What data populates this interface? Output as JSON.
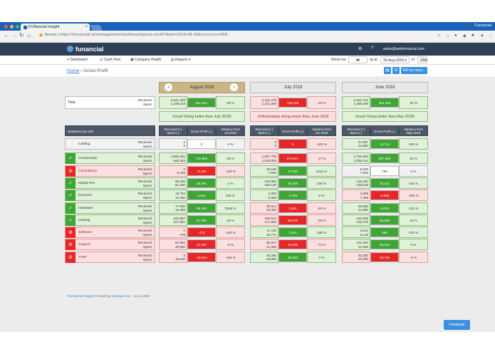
{
  "browser": {
    "tab_title": "FUNancial Insight",
    "tab_close": "×",
    "profile": "Funancial",
    "secure_label": "Secure",
    "url_text": "| https://funancial.ai/management/dashboard/gross-profit?date=2018-08-30&currency=ZAR",
    "icons": [
      "back-icon",
      "forward-icon",
      "reload-icon",
      "home-icon",
      "zoom-icon",
      "star-icon",
      "menu-icon"
    ]
  },
  "app": {
    "logo": "funancial",
    "email": "andre@andremuscat.com",
    "nav": [
      "Dashboard",
      "Cash Flow",
      "Company Health",
      "Reports"
    ],
    "show_me_label": "Show me",
    "as_at_label": "as at",
    "date_value": "30-Aug-2018",
    "in_label": "in",
    "currency": "ZAR",
    "tell_me_more": "Tell me more..."
  },
  "breadcrumb": {
    "home": "Home",
    "separator": " › ",
    "current": "Gross Profit"
  },
  "months": {
    "aug": {
      "label": "August 2018",
      "prev": "‹",
      "next": "›"
    },
    "jul": {
      "label": "July 2018"
    },
    "jun": {
      "label": "June 2018"
    }
  },
  "total": {
    "label": "Total",
    "received_label": "Received:",
    "spent_label": "Spent:",
    "aug": {
      "received": "2,041,339",
      "spent": "1,109,418",
      "profit": "931,921",
      "variance": "28 %",
      "profit_tone": "g",
      "tone": "g"
    },
    "jul": {
      "received": "2,151,476",
      "spent": "1,421,309",
      "profit": "730,166",
      "variance": "-20 %",
      "profit_tone": "r",
      "tone": "r"
    },
    "jun": {
      "received": "2,404,764",
      "spent": "1,486,506",
      "profit": "918,258",
      "variance": "34 %",
      "profit_tone": "g",
      "tone": "g"
    }
  },
  "messages": {
    "aug": {
      "text": "Great! Doing better than July 2018!",
      "tone": "g"
    },
    "jul": {
      "text": "Unfortunately doing worse than June 2018",
      "tone": "r"
    },
    "jun": {
      "text": "Great! Doing better than May 2018!",
      "tone": "g"
    }
  },
  "headers": {
    "solutions": "Solutions you sell",
    "received_spent": [
      "Received (+)",
      "Spent (-)"
    ],
    "gross_profit": "Gross Profit (=)",
    "variance_aug": [
      "Variance from",
      "Jul 2018"
    ],
    "variance_jul": [
      "Variance from",
      "Jun 2018"
    ],
    "variance_jun": [
      "Variance from",
      "May 2018"
    ]
  },
  "rows": [
    {
      "name": "Cabling",
      "status": "none",
      "aug": {
        "r": "0",
        "s": "0",
        "p": "0",
        "v": "0 %",
        "pt": "w",
        "t": "n"
      },
      "jul": {
        "r": "0",
        "s": "0",
        "p": "0",
        "v": "-100 %",
        "pt": "r",
        "t": "r"
      },
      "jun": {
        "r": "57,597",
        "s": "42,883",
        "p": "14,714",
        "v": "100 %",
        "pt": "g",
        "t": "g"
      }
    },
    {
      "name": "Connectivity",
      "status": "g",
      "aug": {
        "r": "1,590,251",
        "s": "848,363",
        "p": "741,889",
        "v": "30 %",
        "pt": "g",
        "t": "g"
      },
      "jul": {
        "r": "1,587,700",
        "s": "1,015,084",
        "p": "572,617",
        "v": "-17 %",
        "pt": "r",
        "t": "r"
      },
      "jun": {
        "r": "1,752,994",
        "s": "1,065,314",
        "p": "687,680",
        "v": "22 %",
        "pt": "g",
        "t": "g"
      }
    },
    {
      "name": "Consultancy",
      "status": "r",
      "aug": {
        "r": "0",
        "s": "8,156",
        "p": "-8,156",
        "v": "-146 %",
        "pt": "r",
        "t": "r"
      },
      "jul": {
        "r": "25,100",
        "s": "7,500",
        "p": "17,600",
        "v": "2414 %",
        "pt": "g",
        "t": "g"
      },
      "jun": {
        "r": "8,200",
        "s": "7,500",
        "p": "700",
        "v": "0 %",
        "pt": "w",
        "t": "n"
      }
    },
    {
      "name": "Digital Pen",
      "status": "g",
      "aug": {
        "r": "96,320",
        "s": "61,260",
        "p": "35,060",
        "v": "2 %",
        "pt": "g",
        "t": "g"
      },
      "jul": {
        "r": "194,550",
        "s": "160,130",
        "p": "34,359",
        "v": "230 %",
        "pt": "g",
        "t": "g"
      },
      "jun": {
        "r": "136,440",
        "s": "126,019",
        "p": "10,421",
        "v": "118 %",
        "pt": "g",
        "t": "g"
      }
    },
    {
      "name": "Domains",
      "status": "g",
      "aug": {
        "r": "18,784",
        "s": "13,330",
        "p": "5,454",
        "v": "245 %",
        "pt": "g",
        "t": "g"
      },
      "jul": {
        "r": "1,600",
        "s": "5,358",
        "p": "-3,758",
        "v": "5 %",
        "pt": "g",
        "t": "g"
      },
      "jun": {
        "r": "3,369",
        "s": "7,336",
        "p": "-3,966",
        "v": "-290 %",
        "pt": "r",
        "t": "r"
      }
    },
    {
      "name": "Hardware",
      "status": "g",
      "aug": {
        "r": "77,636",
        "s": "12,469",
        "p": "65,166",
        "v": "2548 %",
        "pt": "g",
        "t": "g"
      },
      "jul": {
        "r": "30,914",
        "s": "28,453",
        "p": "2,461",
        "v": "-82 %",
        "pt": "r",
        "t": "r"
      },
      "jun": {
        "r": "58,585",
        "s": "44,585",
        "p": "14,001",
        "v": "131 %",
        "pt": "g",
        "t": "g"
      }
    },
    {
      "name": "Hosting",
      "status": "g",
      "aug": {
        "r": "194,997",
        "s": "107,691",
        "p": "87,306",
        "v": "43 %",
        "pt": "g",
        "t": "g"
      },
      "jul": {
        "r": "188,544",
        "s": "127,668",
        "p": "60,976",
        "v": "-29 %",
        "pt": "r",
        "t": "r"
      },
      "jun": {
        "r": "210,936",
        "s": "125,476",
        "p": "85,460",
        "v": "24 %",
        "pt": "g",
        "t": "g"
      }
    },
    {
      "name": "Software",
      "status": "r",
      "aug": {
        "r": "0",
        "s": "479",
        "p": "-479",
        "v": "-129 %",
        "pt": "r",
        "t": "r"
      },
      "jul": {
        "r": "17,415",
        "s": "15,774",
        "p": "1,641",
        "v": "348 %",
        "pt": "g",
        "t": "g"
      },
      "jun": {
        "r": "5,511",
        "s": "5,145",
        "p": "366",
        "v": "176 %",
        "pt": "g",
        "t": "g"
      }
    },
    {
      "name": "Support",
      "status": "r",
      "aug": {
        "r": "63,352",
        "s": "40,860",
        "p": "22,492",
        "v": "-6 %",
        "pt": "r",
        "t": "r"
      },
      "jul": {
        "r": "65,327",
        "s": "41,359",
        "p": "23,968",
        "v": "-73 %",
        "pt": "r",
        "t": "r"
      },
      "jun": {
        "r": "131,002",
        "s": "41,659",
        "p": "89,343",
        "v": "6 %",
        "pt": "g",
        "t": "g"
      }
    },
    {
      "name": "VOIP",
      "status": "r",
      "aug": {
        "r": "0",
        "s": "16,810",
        "p": "-16,810",
        "v": "-183 %",
        "pt": "r",
        "t": "r"
      },
      "jul": {
        "r": "40,346",
        "s": "20,083",
        "p": "20,263",
        "v": "3 %",
        "pt": "g",
        "t": "g"
      },
      "jun": {
        "r": "40,330",
        "s": "20,590",
        "p": "19,740",
        "v": "-5 %",
        "pt": "r",
        "t": "r"
      }
    }
  ],
  "footer": {
    "prefix": "FUNancial Insight",
    "middle": " © 2018 by ",
    "company": "Sinnaero Inc",
    "version": " - v1.3.4.004"
  },
  "feedback": "Feedback",
  "colors": {
    "green": "#3fa535",
    "red": "#e52727",
    "header_dark": "#2f3f55",
    "accent_blue": "#3b8fe0",
    "active_month": "#c9b586"
  }
}
